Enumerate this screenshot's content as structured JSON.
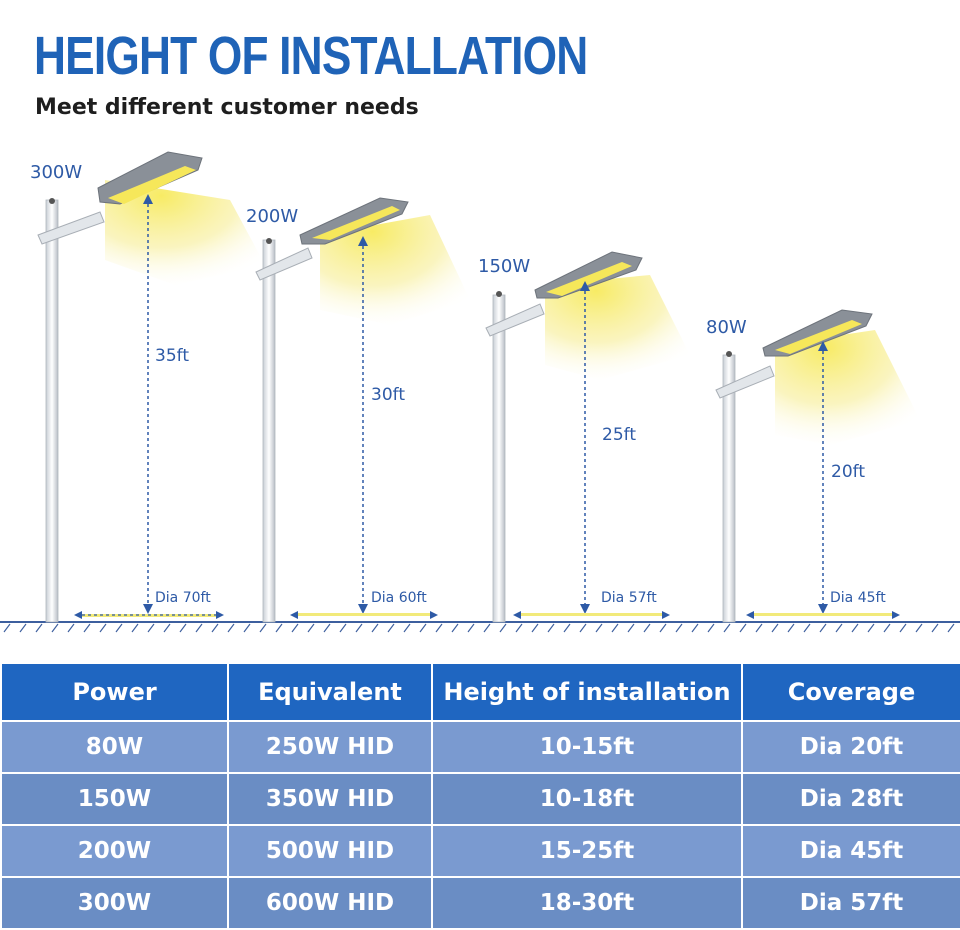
{
  "header": {
    "title": "HEIGHT OF INSTALLATION",
    "subtitle": "Meet different customer needs"
  },
  "lights": [
    {
      "power": "300W",
      "height": "35ft",
      "diameter": "Dia 70ft"
    },
    {
      "power": "200W",
      "height": "30ft",
      "diameter": "Dia 60ft"
    },
    {
      "power": "150W",
      "height": "25ft",
      "diameter": "Dia 57ft"
    },
    {
      "power": "80W",
      "height": "20ft",
      "diameter": "Dia 45ft"
    }
  ],
  "table": {
    "headers": [
      "Power",
      "Equivalent",
      "Height of installation",
      "Coverage"
    ],
    "rows": [
      [
        "80W",
        "250W HID",
        "10-15ft",
        "Dia 20ft"
      ],
      [
        "150W",
        "350W HID",
        "10-18ft",
        "Dia 28ft"
      ],
      [
        "200W",
        "500W HID",
        "15-25ft",
        "Dia 45ft"
      ],
      [
        "300W",
        "600W HID",
        "18-30ft",
        "Dia 57ft"
      ]
    ]
  },
  "colors": {
    "title": "#1f63b7",
    "table_header": "#1f66c1",
    "table_row": "#6a8dc4",
    "annotation": "#2e5aa6",
    "light_beam": "#f5e77a"
  }
}
